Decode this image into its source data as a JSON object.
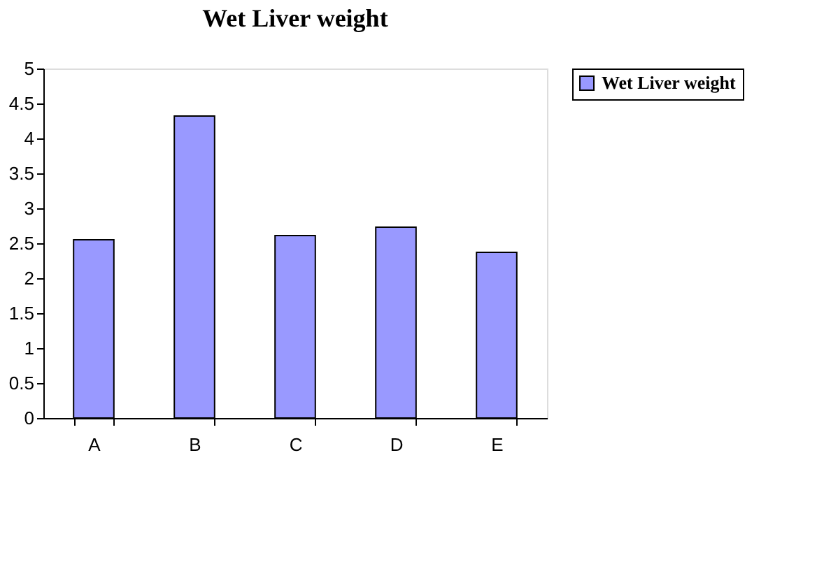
{
  "chart_data": {
    "type": "bar",
    "title": "Wet Liver weight",
    "categories": [
      "A",
      "B",
      "C",
      "D",
      "E"
    ],
    "series": [
      {
        "name": "Wet Liver weight",
        "color": "#9999ff",
        "values": [
          2.55,
          4.32,
          2.61,
          2.73,
          2.37
        ]
      }
    ],
    "ylim": [
      0,
      5
    ],
    "yticks": [
      0,
      0.5,
      1,
      1.5,
      2,
      2.5,
      3,
      3.5,
      4,
      4.5,
      5
    ],
    "grid": false,
    "legend": "right"
  }
}
